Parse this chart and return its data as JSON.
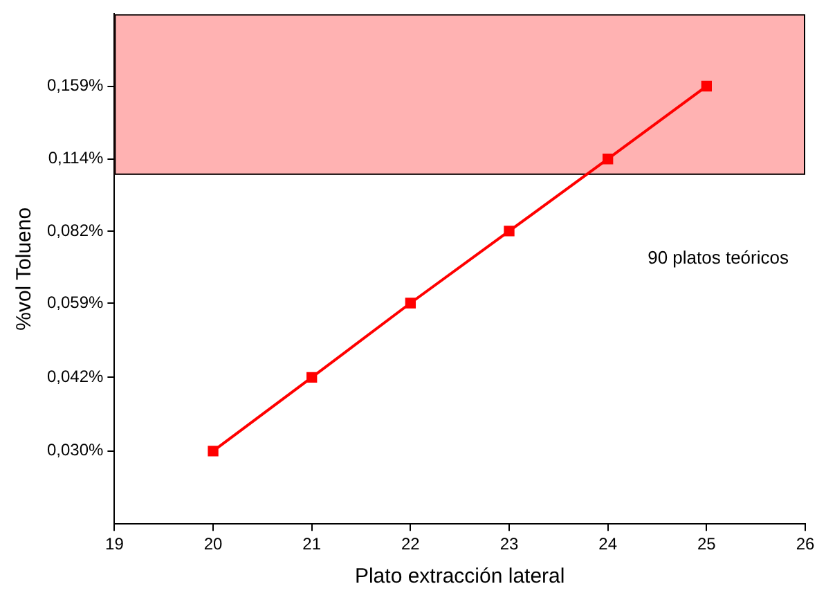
{
  "chart_data": {
    "type": "line",
    "xlabel": "Plato extracción lateral",
    "ylabel": "%vol Tolueno",
    "x": [
      20,
      21,
      22,
      23,
      24,
      25
    ],
    "series": [
      {
        "color": "#ff0000",
        "values": [
          0.03,
          0.042,
          0.059,
          0.082,
          0.114,
          0.159
        ]
      }
    ],
    "log": "y",
    "xlim": [
      19,
      26
    ],
    "xticks": [
      19,
      20,
      21,
      22,
      23,
      24,
      25,
      26
    ],
    "ylim": [
      0.0215,
      0.221
    ],
    "yticks": [
      {
        "value": 0.03,
        "label": "0,030%"
      },
      {
        "value": 0.042,
        "label": "0,042%"
      },
      {
        "value": 0.059,
        "label": "0,059%"
      },
      {
        "value": 0.082,
        "label": "0,082%"
      },
      {
        "value": 0.114,
        "label": "0,114%"
      },
      {
        "value": 0.159,
        "label": "0,159%"
      }
    ],
    "bands": [
      {
        "axis": "y",
        "from": 0.106,
        "to": 0.221,
        "color": "#ff0000"
      }
    ],
    "annotations": [
      "90 platos teóricos"
    ],
    "marker": "square",
    "line_style": "solid",
    "grid": false,
    "legend": false
  }
}
